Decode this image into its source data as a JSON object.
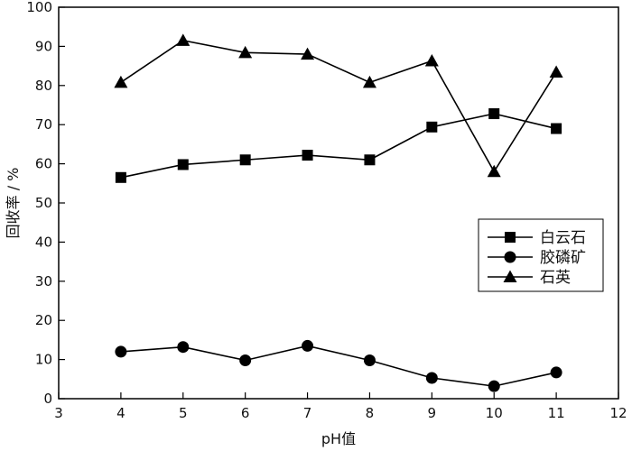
{
  "chart_data": {
    "type": "line",
    "title": "",
    "xlabel": "pH值",
    "ylabel": "回收率 / %",
    "xlim": [
      3,
      12
    ],
    "ylim": [
      0,
      100
    ],
    "xticks": [
      3,
      4,
      5,
      6,
      7,
      8,
      9,
      10,
      11,
      12
    ],
    "yticks": [
      0,
      10,
      20,
      30,
      40,
      50,
      60,
      70,
      80,
      90,
      100
    ],
    "grid": false,
    "legend_position": "center-right",
    "x": [
      4,
      5,
      6,
      7,
      8,
      9,
      10,
      11
    ],
    "series": [
      {
        "name": "白云石",
        "marker": "square",
        "values": [
          56.5,
          59.8,
          61.0,
          62.2,
          61.0,
          69.4,
          72.8,
          69.0
        ]
      },
      {
        "name": "胶磷矿",
        "marker": "circle",
        "values": [
          12.0,
          13.2,
          9.8,
          13.5,
          9.8,
          5.3,
          3.2,
          6.7
        ]
      },
      {
        "name": "石英",
        "marker": "triangle",
        "values": [
          80.8,
          91.5,
          88.4,
          88.0,
          80.8,
          86.3,
          58.0,
          83.4
        ]
      }
    ]
  }
}
